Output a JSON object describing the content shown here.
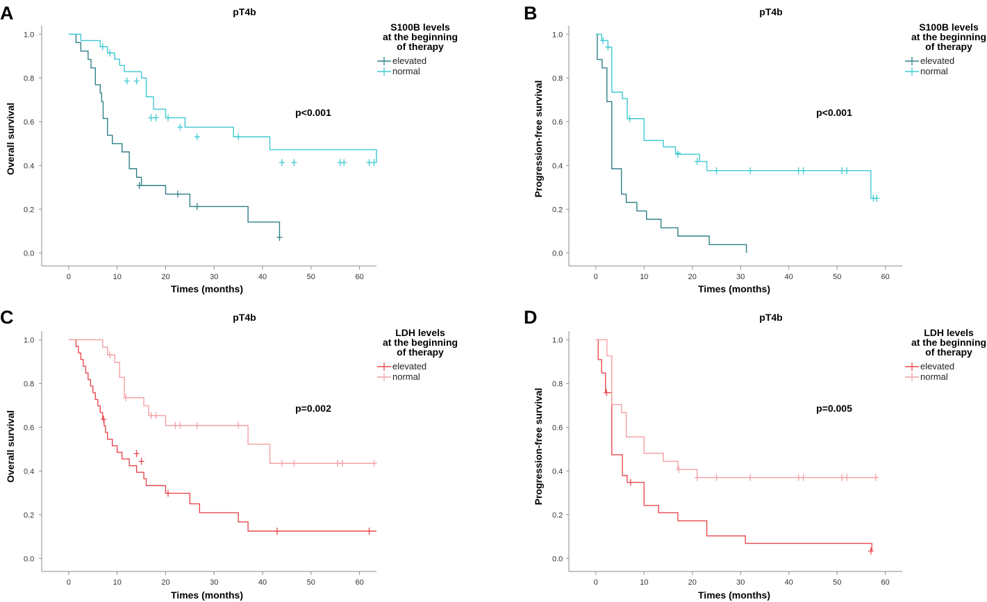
{
  "colors": {
    "s100b_elevated": "#2e7f86",
    "s100b_normal": "#3fc9d2",
    "ldh_elevated": "#e8494f",
    "ldh_normal": "#f2a0a3",
    "axis": "#8a8a8a",
    "text": "#000000"
  },
  "chart_data": [
    {
      "panel_letter": "A",
      "type": "line",
      "subtype": "kaplan-meier",
      "title": "pT4b",
      "xlabel": "Times (months)",
      "ylabel": "Overall survival",
      "xlim": [
        -3,
        63.5
      ],
      "ylim": [
        -0.05,
        1.02
      ],
      "xticks": [
        "0",
        "10",
        "20",
        "30",
        "40",
        "50",
        "60"
      ],
      "yticks": [
        "0.0",
        "0.2",
        "0.4",
        "0.6",
        "0.8",
        "1.0"
      ],
      "legend_title": [
        "S100B levels",
        "at the beginning",
        "of therapy"
      ],
      "legend_position": "top-right",
      "annotation": "p<0.001",
      "series": [
        {
          "name": "elevated",
          "color_key": "s100b_elevated",
          "times": [
            0,
            1.5,
            2.5,
            4,
            4.6,
            5.5,
            6.5,
            6.8,
            7.1,
            8,
            9,
            11,
            12.5,
            14,
            15,
            20,
            25,
            34.5,
            37,
            43.5
          ],
          "survival": [
            1,
            0.962,
            0.923,
            0.885,
            0.846,
            0.769,
            0.731,
            0.692,
            0.615,
            0.538,
            0.5,
            0.462,
            0.385,
            0.346,
            0.308,
            0.269,
            0.212,
            0.212,
            0.141,
            0.071
          ],
          "censored": [
            [
              14.6,
              0.308
            ],
            [
              22.5,
              0.269
            ],
            [
              26.5,
              0.212
            ],
            [
              43.5,
              0.071
            ]
          ]
        },
        {
          "name": "normal",
          "color_key": "s100b_normal",
          "times": [
            0,
            2.5,
            6.5,
            8,
            9.5,
            10.5,
            11.5,
            15,
            16,
            17.5,
            20,
            24,
            34,
            37,
            41.5,
            63.5
          ],
          "survival": [
            1,
            0.971,
            0.943,
            0.914,
            0.886,
            0.857,
            0.829,
            0.8,
            0.714,
            0.657,
            0.618,
            0.575,
            0.531,
            0.531,
            0.472,
            0.413
          ],
          "censored": [
            [
              7,
              0.943
            ],
            [
              8.5,
              0.914
            ],
            [
              12,
              0.786
            ],
            [
              14,
              0.786
            ],
            [
              17,
              0.618
            ],
            [
              18,
              0.618
            ],
            [
              20.5,
              0.618
            ],
            [
              23,
              0.575
            ],
            [
              26.5,
              0.531
            ],
            [
              35,
              0.531
            ],
            [
              44,
              0.413
            ],
            [
              46.5,
              0.413
            ],
            [
              56,
              0.413
            ],
            [
              56.8,
              0.413
            ],
            [
              62,
              0.413
            ],
            [
              63,
              0.413
            ]
          ]
        }
      ]
    },
    {
      "panel_letter": "B",
      "type": "line",
      "subtype": "kaplan-meier",
      "title": "pT4b",
      "xlabel": "Times (months)",
      "ylabel": "Progression-free survival",
      "xlim": [
        -3,
        63.5
      ],
      "ylim": [
        -0.05,
        1.02
      ],
      "xticks": [
        "0",
        "10",
        "20",
        "30",
        "40",
        "50",
        "60"
      ],
      "yticks": [
        "0.0",
        "0.2",
        "0.4",
        "0.6",
        "0.8",
        "1.0"
      ],
      "legend_title": [
        "S100B levels",
        "at the beginning",
        "of therapy"
      ],
      "legend_position": "top-right",
      "annotation": "p<0.001",
      "series": [
        {
          "name": "elevated",
          "color_key": "s100b_elevated",
          "times": [
            0,
            0.3,
            1.3,
            2.3,
            3.3,
            5.3,
            6.3,
            8.5,
            9.5,
            10.5,
            13.5,
            17,
            23.5,
            31.2
          ],
          "survival": [
            1,
            0.885,
            0.846,
            0.692,
            0.385,
            0.269,
            0.231,
            0.192,
            0.192,
            0.154,
            0.115,
            0.077,
            0.038,
            0.0
          ],
          "censored": []
        },
        {
          "name": "normal",
          "color_key": "s100b_normal",
          "times": [
            0,
            1.2,
            2.5,
            3.3,
            5.5,
            6.5,
            10,
            14,
            16.5,
            17.5,
            21.5,
            23,
            57,
            58.3
          ],
          "survival": [
            1,
            0.971,
            0.941,
            0.735,
            0.706,
            0.614,
            0.514,
            0.485,
            0.456,
            0.451,
            0.418,
            0.376,
            0.25,
            0.25
          ],
          "censored": [
            [
              1.5,
              0.971
            ],
            [
              2.5,
              0.941
            ],
            [
              7,
              0.614
            ],
            [
              17,
              0.451
            ],
            [
              21,
              0.418
            ],
            [
              25,
              0.376
            ],
            [
              32,
              0.376
            ],
            [
              42,
              0.376
            ],
            [
              43,
              0.376
            ],
            [
              51,
              0.376
            ],
            [
              52,
              0.376
            ],
            [
              57.5,
              0.25
            ],
            [
              58.2,
              0.25
            ]
          ]
        }
      ]
    },
    {
      "panel_letter": "C",
      "type": "line",
      "subtype": "kaplan-meier",
      "title": "pT4b",
      "xlabel": "Times (months)",
      "ylabel": "Overall survival",
      "xlim": [
        -3,
        63.5
      ],
      "ylim": [
        -0.05,
        1.02
      ],
      "xticks": [
        "0",
        "10",
        "20",
        "30",
        "40",
        "50",
        "60"
      ],
      "yticks": [
        "0.0",
        "0.2",
        "0.4",
        "0.6",
        "0.8",
        "1.0"
      ],
      "legend_title": [
        "LDH levels",
        "at the beginning",
        "of therapy"
      ],
      "legend_position": "top-right",
      "annotation": "p=0.002",
      "series": [
        {
          "name": "elevated",
          "color_key": "ldh_elevated",
          "times": [
            0,
            1.5,
            2,
            2.5,
            3,
            3.5,
            4,
            4.5,
            5,
            5.5,
            6,
            6.5,
            7,
            7.3,
            7.6,
            8,
            9,
            10,
            11,
            12.5,
            14,
            15.5,
            16,
            20,
            25,
            27,
            35,
            37,
            63.5
          ],
          "survival": [
            1,
            0.97,
            0.94,
            0.91,
            0.879,
            0.848,
            0.818,
            0.788,
            0.758,
            0.727,
            0.697,
            0.667,
            0.636,
            0.606,
            0.576,
            0.545,
            0.515,
            0.485,
            0.455,
            0.424,
            0.394,
            0.364,
            0.333,
            0.298,
            0.25,
            0.209,
            0.167,
            0.125,
            0.125
          ],
          "censored": [
            [
              7.2,
              0.636
            ],
            [
              14,
              0.479
            ],
            [
              15,
              0.444
            ],
            [
              20.5,
              0.298
            ],
            [
              43,
              0.125
            ],
            [
              62,
              0.125
            ]
          ]
        },
        {
          "name": "normal",
          "color_key": "ldh_normal",
          "times": [
            0,
            7,
            8,
            9.5,
            10.5,
            11.5,
            15.5,
            16.5,
            20,
            37,
            41.5,
            63.5
          ],
          "survival": [
            1,
            0.966,
            0.931,
            0.897,
            0.828,
            0.735,
            0.698,
            0.653,
            0.608,
            0.522,
            0.435,
            0.435
          ],
          "censored": [
            [
              8.5,
              0.931
            ],
            [
              11.8,
              0.735
            ],
            [
              17,
              0.653
            ],
            [
              18,
              0.653
            ],
            [
              22,
              0.608
            ],
            [
              23,
              0.608
            ],
            [
              26.5,
              0.608
            ],
            [
              35,
              0.608
            ],
            [
              44,
              0.435
            ],
            [
              46.5,
              0.435
            ],
            [
              55.5,
              0.435
            ],
            [
              56.5,
              0.435
            ],
            [
              63,
              0.435
            ]
          ]
        }
      ]
    },
    {
      "panel_letter": "D",
      "type": "line",
      "subtype": "kaplan-meier",
      "title": "pT4b",
      "xlabel": "Times (months)",
      "ylabel": "Progression-free survival",
      "xlim": [
        -3,
        63.5
      ],
      "ylim": [
        -0.05,
        1.02
      ],
      "xticks": [
        "0",
        "10",
        "20",
        "30",
        "40",
        "50",
        "60"
      ],
      "yticks": [
        "0.0",
        "0.2",
        "0.4",
        "0.6",
        "0.8",
        "1.0"
      ],
      "legend_title": [
        "LDH levels",
        "at the beginning",
        "of therapy"
      ],
      "legend_position": "top-right",
      "annotation": "p=0.005",
      "series": [
        {
          "name": "elevated",
          "color_key": "ldh_elevated",
          "times": [
            0,
            0.5,
            1.2,
            2,
            3.3,
            5.5,
            6.5,
            8.5,
            10,
            13,
            17,
            23,
            31,
            57.2
          ],
          "survival": [
            1,
            0.909,
            0.848,
            0.758,
            0.474,
            0.379,
            0.348,
            0.348,
            0.242,
            0.209,
            0.172,
            0.103,
            0.069,
            0.034
          ],
          "censored": [
            [
              2.2,
              0.758
            ],
            [
              7.2,
              0.348
            ],
            [
              57,
              0.034
            ]
          ]
        },
        {
          "name": "normal",
          "color_key": "ldh_normal",
          "times": [
            0,
            2.3,
            3.3,
            5.3,
            6.3,
            10,
            14,
            16,
            17,
            21,
            58.2
          ],
          "survival": [
            1,
            0.926,
            0.704,
            0.667,
            0.556,
            0.481,
            0.444,
            0.444,
            0.407,
            0.37,
            0.37
          ],
          "censored": [
            [
              17.2,
              0.407
            ],
            [
              21,
              0.37
            ],
            [
              25,
              0.37
            ],
            [
              32,
              0.37
            ],
            [
              42,
              0.37
            ],
            [
              43,
              0.37
            ],
            [
              51,
              0.37
            ],
            [
              52,
              0.37
            ],
            [
              58,
              0.37
            ]
          ]
        }
      ]
    }
  ]
}
